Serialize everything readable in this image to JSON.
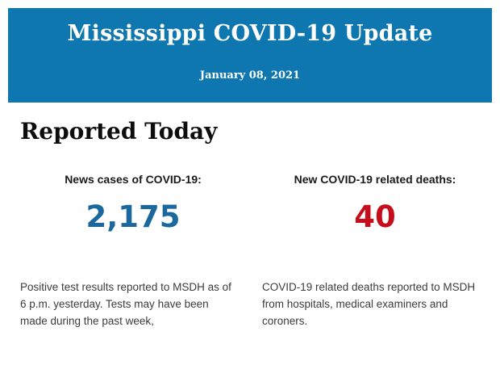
{
  "header": {
    "title": "Mississippi COVID-19 Update",
    "date": "January 08, 2021",
    "background": "#0e77b0",
    "text_color": "#ffffff"
  },
  "section": {
    "heading": "Reported Today"
  },
  "stats": [
    {
      "label": "News cases of COVID-19:",
      "value": "2,175",
      "value_color": "#1a689e",
      "description": "Positive test results reported to MSDH as of 6 p.m. yesterday. Tests may have been made during the past week,"
    },
    {
      "label": "New COVID-19 related deaths:",
      "value": "40",
      "value_color": "#c50d1c",
      "description": "COVID-19 related deaths reported to MSDH from hospitals, medical examiners and coroners."
    }
  ]
}
